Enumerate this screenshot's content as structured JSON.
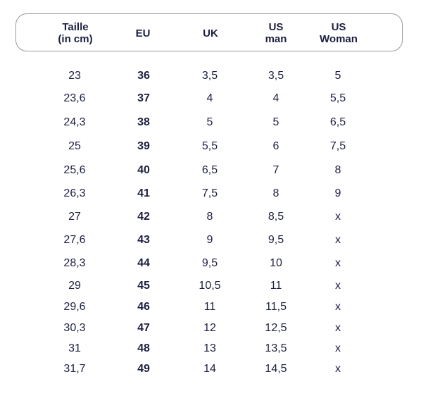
{
  "columns": [
    {
      "line1": "Taille",
      "line2": "(in cm)"
    },
    {
      "line1": "EU",
      "line2": ""
    },
    {
      "line1": "UK",
      "line2": ""
    },
    {
      "line1": "US",
      "line2": "man"
    },
    {
      "line1": "US",
      "line2": "Woman"
    }
  ],
  "rows": [
    [
      "23",
      "36",
      "3,5",
      "3,5",
      "5"
    ],
    [
      "23,6",
      "37",
      "4",
      "4",
      "5,5"
    ],
    [
      "24,3",
      "38",
      "5",
      "5",
      "6,5"
    ],
    [
      "25",
      "39",
      "5,5",
      "6",
      "7,5"
    ],
    [
      "25,6",
      "40",
      "6,5",
      "7",
      "8"
    ],
    [
      "26,3",
      "41",
      "7,5",
      "8",
      "9"
    ],
    [
      "27",
      "42",
      "8",
      "8,5",
      "x"
    ],
    [
      "27,6",
      "43",
      "9",
      "9,5",
      "x"
    ],
    [
      "28,3",
      "44",
      "9,5",
      "10",
      "x"
    ],
    [
      "29",
      "45",
      "10,5",
      "11",
      "x"
    ],
    [
      "29,6",
      "46",
      "11",
      "11,5",
      "x"
    ],
    [
      "30,3",
      "47",
      "12",
      "12,5",
      "x"
    ],
    [
      "31",
      "48",
      "13",
      "13,5",
      "x"
    ],
    [
      "31,7",
      "49",
      "14",
      "14,5",
      "x"
    ]
  ]
}
